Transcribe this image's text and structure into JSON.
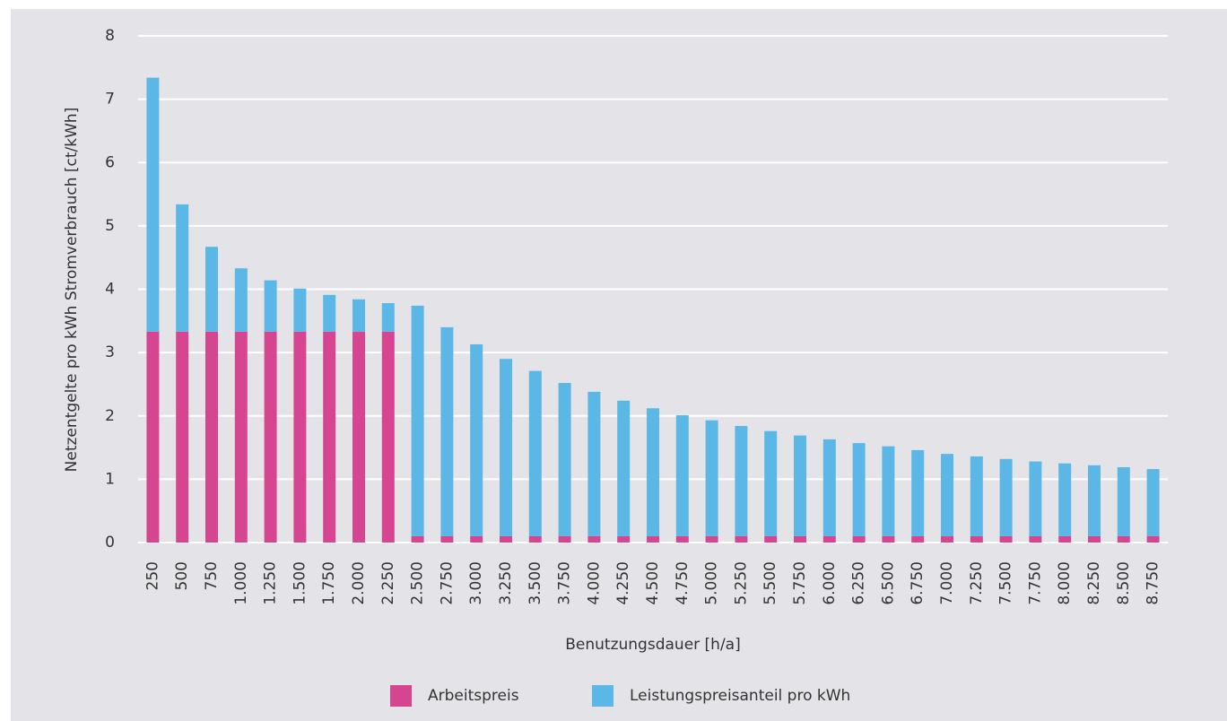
{
  "chart_data": {
    "type": "stacked_bar",
    "xlabel": "Benutzungsdauer [h/a]",
    "ylabel": "Netzentgelte pro kWh Stromverbrauch [ct/kWh]",
    "categories": [
      "250",
      "500",
      "750",
      "1.000",
      "1.250",
      "1.500",
      "1.750",
      "2.000",
      "2.250",
      "2.500",
      "2.750",
      "3.000",
      "3.250",
      "3.500",
      "3.750",
      "4.000",
      "4.250",
      "4.500",
      "4.750",
      "5.000",
      "5.250",
      "5.500",
      "5.750",
      "6.000",
      "6.250",
      "6.500",
      "6.750",
      "7.000",
      "7.250",
      "7.500",
      "7.750",
      "8.000",
      "8.250",
      "8.500",
      "8.750"
    ],
    "series": [
      {
        "name": "Arbeitspreis",
        "color": "#d6458f",
        "values": [
          3.33,
          3.33,
          3.33,
          3.33,
          3.33,
          3.33,
          3.33,
          3.33,
          3.33,
          0.1,
          0.1,
          0.1,
          0.1,
          0.1,
          0.1,
          0.1,
          0.1,
          0.1,
          0.1,
          0.1,
          0.1,
          0.1,
          0.1,
          0.1,
          0.1,
          0.1,
          0.1,
          0.1,
          0.1,
          0.1,
          0.1,
          0.1,
          0.1,
          0.1,
          0.1
        ]
      },
      {
        "name": "Leistungspreisanteil pro kWh",
        "color": "#5bb8e6",
        "values": [
          4.01,
          2.01,
          1.34,
          1.0,
          0.81,
          0.68,
          0.58,
          0.51,
          0.45,
          3.64,
          3.3,
          3.03,
          2.8,
          2.61,
          2.42,
          2.28,
          2.14,
          2.02,
          1.91,
          1.83,
          1.74,
          1.66,
          1.59,
          1.53,
          1.47,
          1.42,
          1.36,
          1.3,
          1.26,
          1.22,
          1.18,
          1.15,
          1.12,
          1.09,
          1.06
        ]
      }
    ],
    "ylim": [
      0,
      8
    ],
    "yticks": [
      0,
      1,
      2,
      3,
      4,
      5,
      6,
      7,
      8
    ],
    "grid": true,
    "legend": "bottom"
  }
}
